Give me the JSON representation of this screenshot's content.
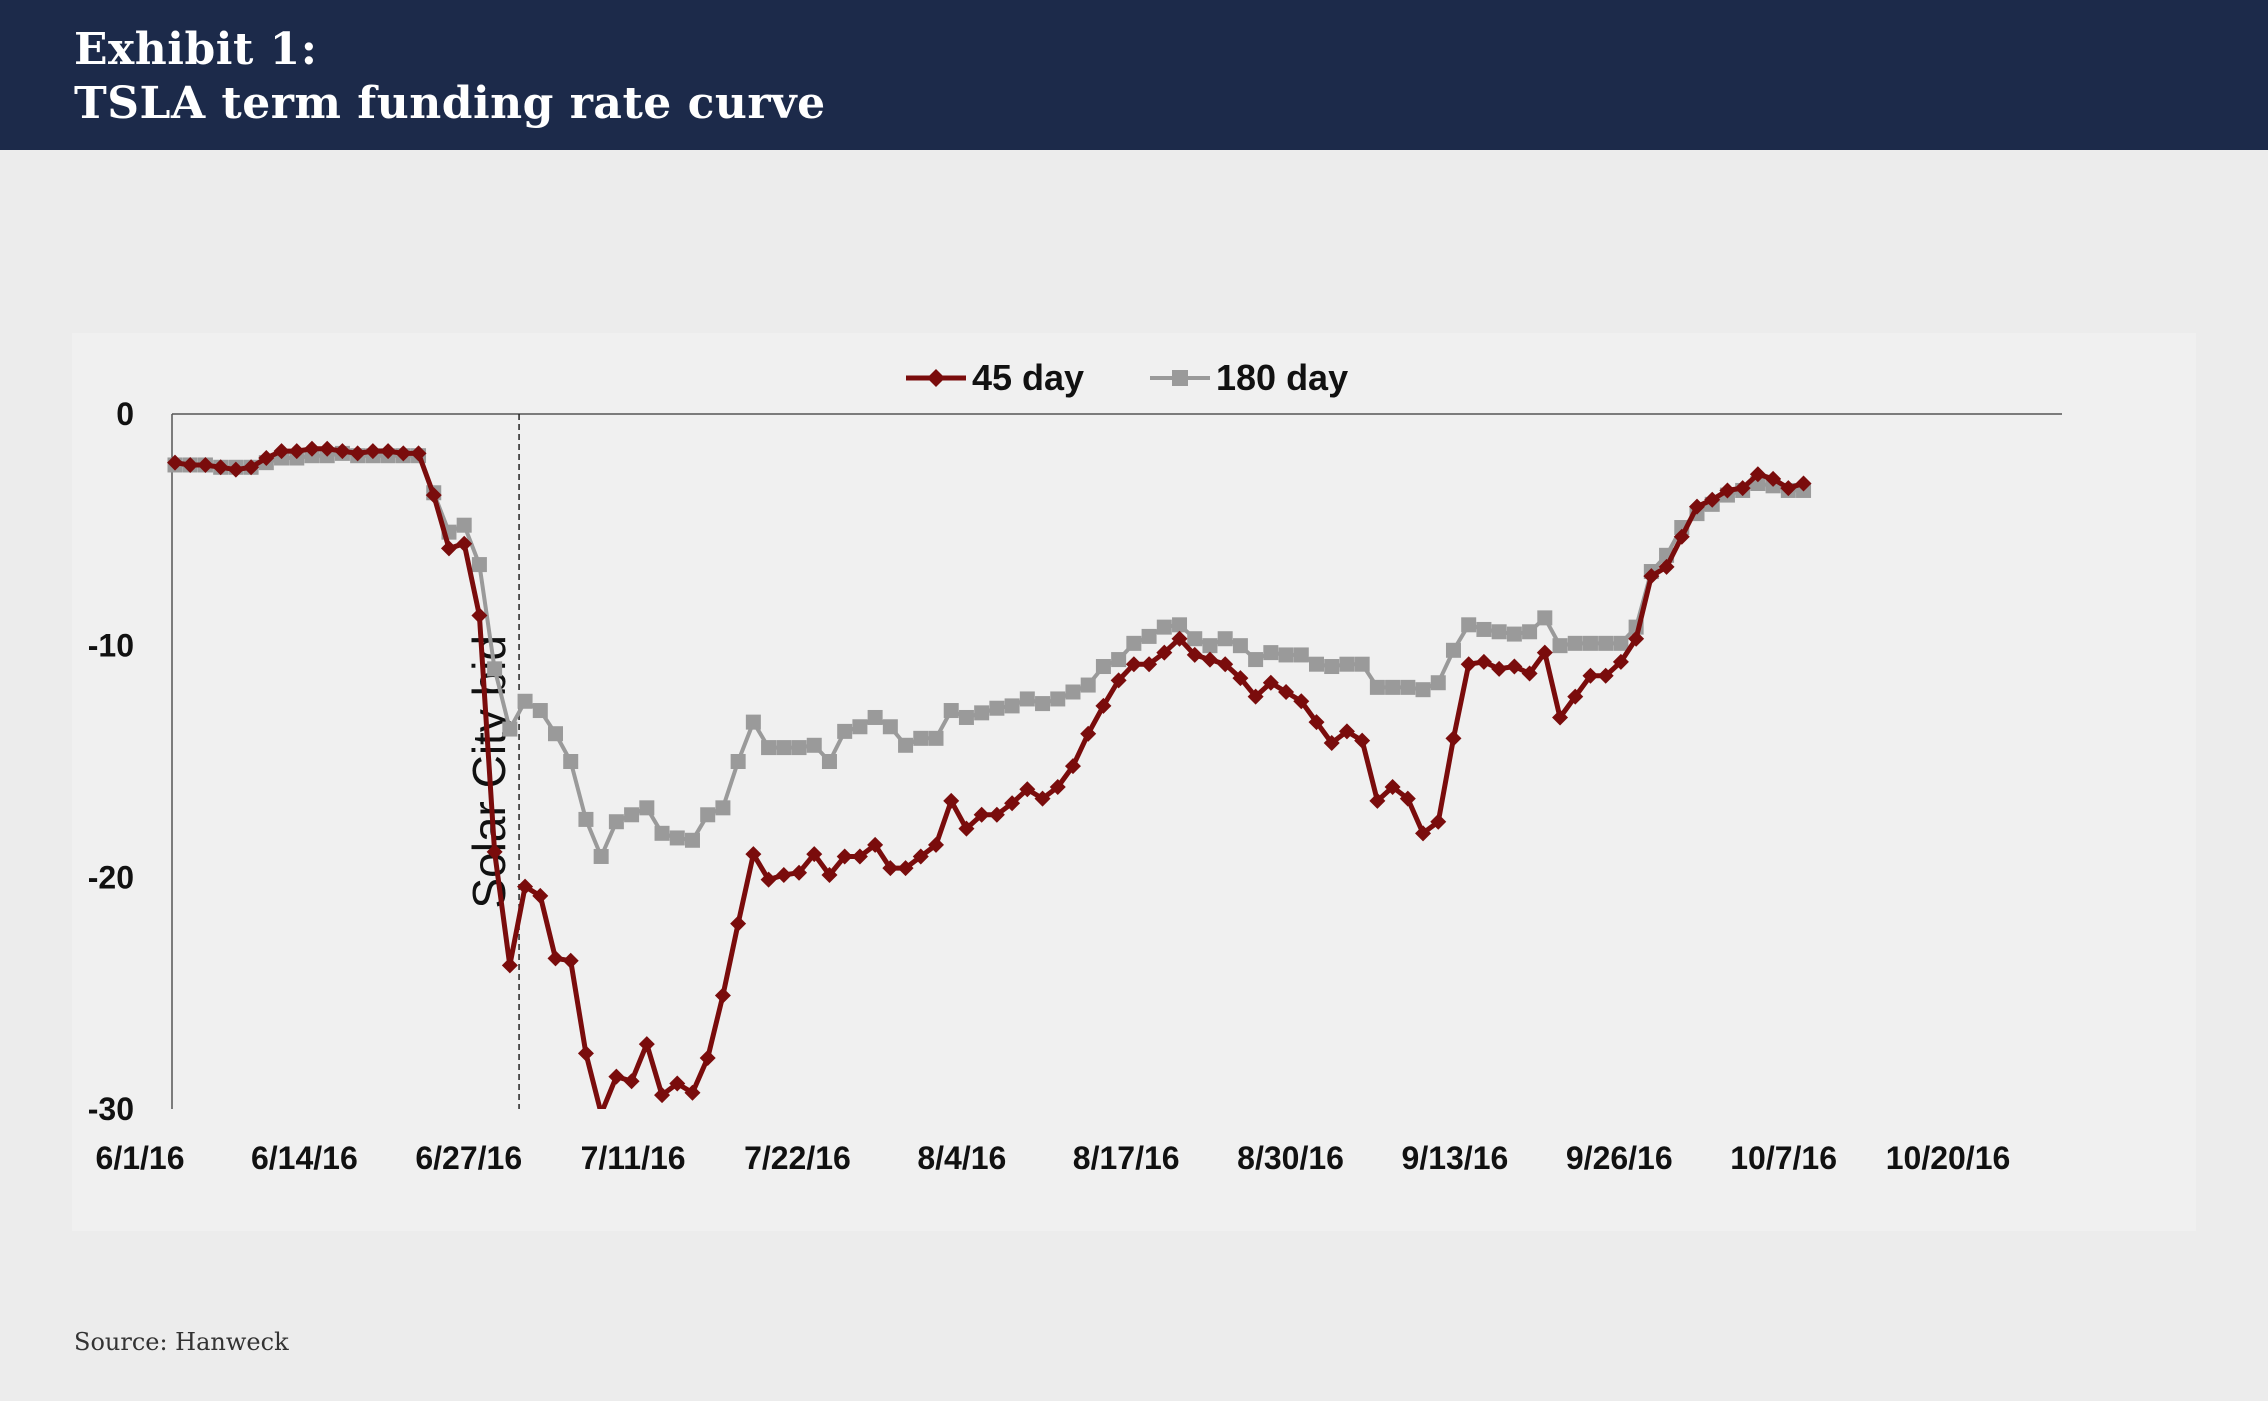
{
  "header": {
    "line1": "Exhibit 1:",
    "line2": "TSLA term funding rate curve"
  },
  "source": "Source: Hanweck",
  "chart_data": {
    "type": "line",
    "title": "Exhibit 1: TSLA term funding rate curve",
    "xlabel": "",
    "ylabel": "",
    "ylim": [
      -30,
      0
    ],
    "yticks": [
      0,
      -10,
      -20,
      -30
    ],
    "x_tick_labels": [
      "6/1/16",
      "6/14/16",
      "6/27/16",
      "7/11/16",
      "7/22/16",
      "8/4/16",
      "8/17/16",
      "8/30/16",
      "9/13/16",
      "9/26/16",
      "10/7/16",
      "10/20/16"
    ],
    "legend": "top-center",
    "grid": false,
    "annotation": {
      "text": "Solar City bid",
      "at_observation": 23
    },
    "series": [
      {
        "name": "45 day",
        "color": "#7a0c0c",
        "marker": "diamond",
        "values": [
          -2.1,
          -2.2,
          -2.2,
          -2.3,
          -2.4,
          -2.3,
          -1.9,
          -1.6,
          -1.6,
          -1.5,
          -1.5,
          -1.6,
          -1.7,
          -1.6,
          -1.6,
          -1.7,
          -1.7,
          -3.5,
          -5.8,
          -5.6,
          -8.7,
          -18.9,
          -23.8,
          -20.4,
          -20.8,
          -23.5,
          -23.6,
          -27.6,
          -30.2,
          -28.6,
          -28.8,
          -27.2,
          -29.4,
          -28.9,
          -29.3,
          -27.8,
          -25.1,
          -22.0,
          -19.0,
          -20.1,
          -19.9,
          -19.8,
          -19.0,
          -19.9,
          -19.1,
          -19.1,
          -18.6,
          -19.6,
          -19.6,
          -19.1,
          -18.6,
          -16.7,
          -17.9,
          -17.3,
          -17.3,
          -16.8,
          -16.2,
          -16.6,
          -16.1,
          -15.2,
          -13.8,
          -12.6,
          -11.5,
          -10.8,
          -10.8,
          -10.3,
          -9.7,
          -10.4,
          -10.6,
          -10.8,
          -11.4,
          -12.2,
          -11.6,
          -12.0,
          -12.4,
          -13.3,
          -14.2,
          -13.7,
          -14.1,
          -16.7,
          -16.1,
          -16.6,
          -18.1,
          -17.6,
          -14.0,
          -10.8,
          -10.7,
          -11.0,
          -10.9,
          -11.2,
          -10.3,
          -13.1,
          -12.2,
          -11.3,
          -11.3,
          -10.7,
          -9.7,
          -7.0,
          -6.6,
          -5.3,
          -4.0,
          -3.7,
          -3.3,
          -3.2,
          -2.6,
          -2.8,
          -3.2,
          -3.0
        ]
      },
      {
        "name": "180 day",
        "color": "#9a9a9a",
        "marker": "square",
        "values": [
          -2.2,
          -2.2,
          -2.2,
          -2.3,
          -2.3,
          -2.3,
          -2.1,
          -1.9,
          -1.9,
          -1.8,
          -1.8,
          -1.7,
          -1.8,
          -1.8,
          -1.8,
          -1.8,
          -1.8,
          -3.4,
          -5.1,
          -4.8,
          -6.5,
          -11.0,
          -13.6,
          -12.4,
          -12.8,
          -13.8,
          -15.0,
          -17.5,
          -19.1,
          -17.6,
          -17.3,
          -17.0,
          -18.1,
          -18.3,
          -18.4,
          -17.3,
          -17.0,
          -15.0,
          -13.3,
          -14.4,
          -14.4,
          -14.4,
          -14.3,
          -15.0,
          -13.7,
          -13.5,
          -13.1,
          -13.5,
          -14.3,
          -14.0,
          -14.0,
          -12.8,
          -13.1,
          -12.9,
          -12.7,
          -12.6,
          -12.3,
          -12.5,
          -12.3,
          -12.0,
          -11.7,
          -10.9,
          -10.6,
          -9.9,
          -9.6,
          -9.2,
          -9.1,
          -9.7,
          -10.0,
          -9.7,
          -10.0,
          -10.6,
          -10.3,
          -10.4,
          -10.4,
          -10.8,
          -10.9,
          -10.8,
          -10.8,
          -11.8,
          -11.8,
          -11.8,
          -11.9,
          -11.6,
          -10.2,
          -9.1,
          -9.3,
          -9.4,
          -9.5,
          -9.4,
          -8.8,
          -10.0,
          -9.9,
          -9.9,
          -9.9,
          -9.9,
          -9.2,
          -6.8,
          -6.1,
          -4.9,
          -4.3,
          -3.9,
          -3.5,
          -3.3,
          -3.0,
          -3.1,
          -3.3,
          -3.3
        ]
      }
    ]
  }
}
